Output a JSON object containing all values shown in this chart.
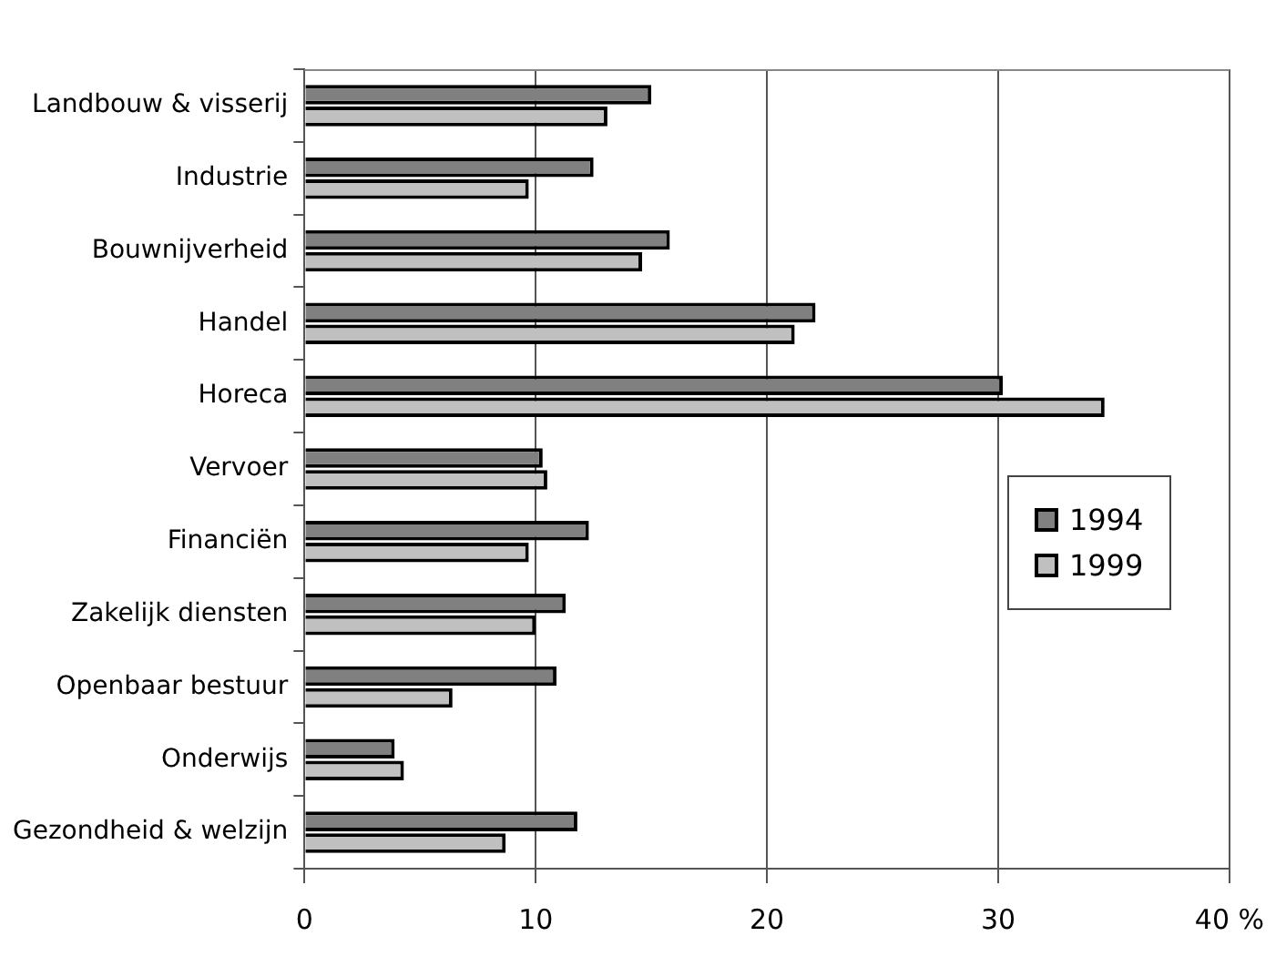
{
  "chart_data": {
    "type": "bar",
    "orientation": "horizontal",
    "categories": [
      "Landbouw & visserij",
      "Industrie",
      "Bouwnijverheid",
      "Handel",
      "Horeca",
      "Vervoer",
      "Financiën",
      "Zakelijk diensten",
      "Openbaar bestuur",
      "Onderwijs",
      "Gezondheid & welzijn"
    ],
    "series": [
      {
        "name": "1994",
        "color": "#808080",
        "values": [
          15.0,
          12.5,
          15.8,
          22.1,
          30.2,
          10.3,
          12.3,
          11.3,
          10.9,
          3.9,
          11.8
        ]
      },
      {
        "name": "1999",
        "color": "#c0c0c0",
        "values": [
          13.1,
          9.7,
          14.6,
          21.2,
          34.6,
          10.5,
          9.7,
          10.0,
          6.4,
          4.3,
          8.7
        ]
      }
    ],
    "xlim": [
      0,
      40
    ],
    "xticks": [
      0,
      10,
      20,
      30,
      {
        "value": 40,
        "label": "40 %"
      }
    ],
    "grid": "x",
    "legend": "right"
  }
}
